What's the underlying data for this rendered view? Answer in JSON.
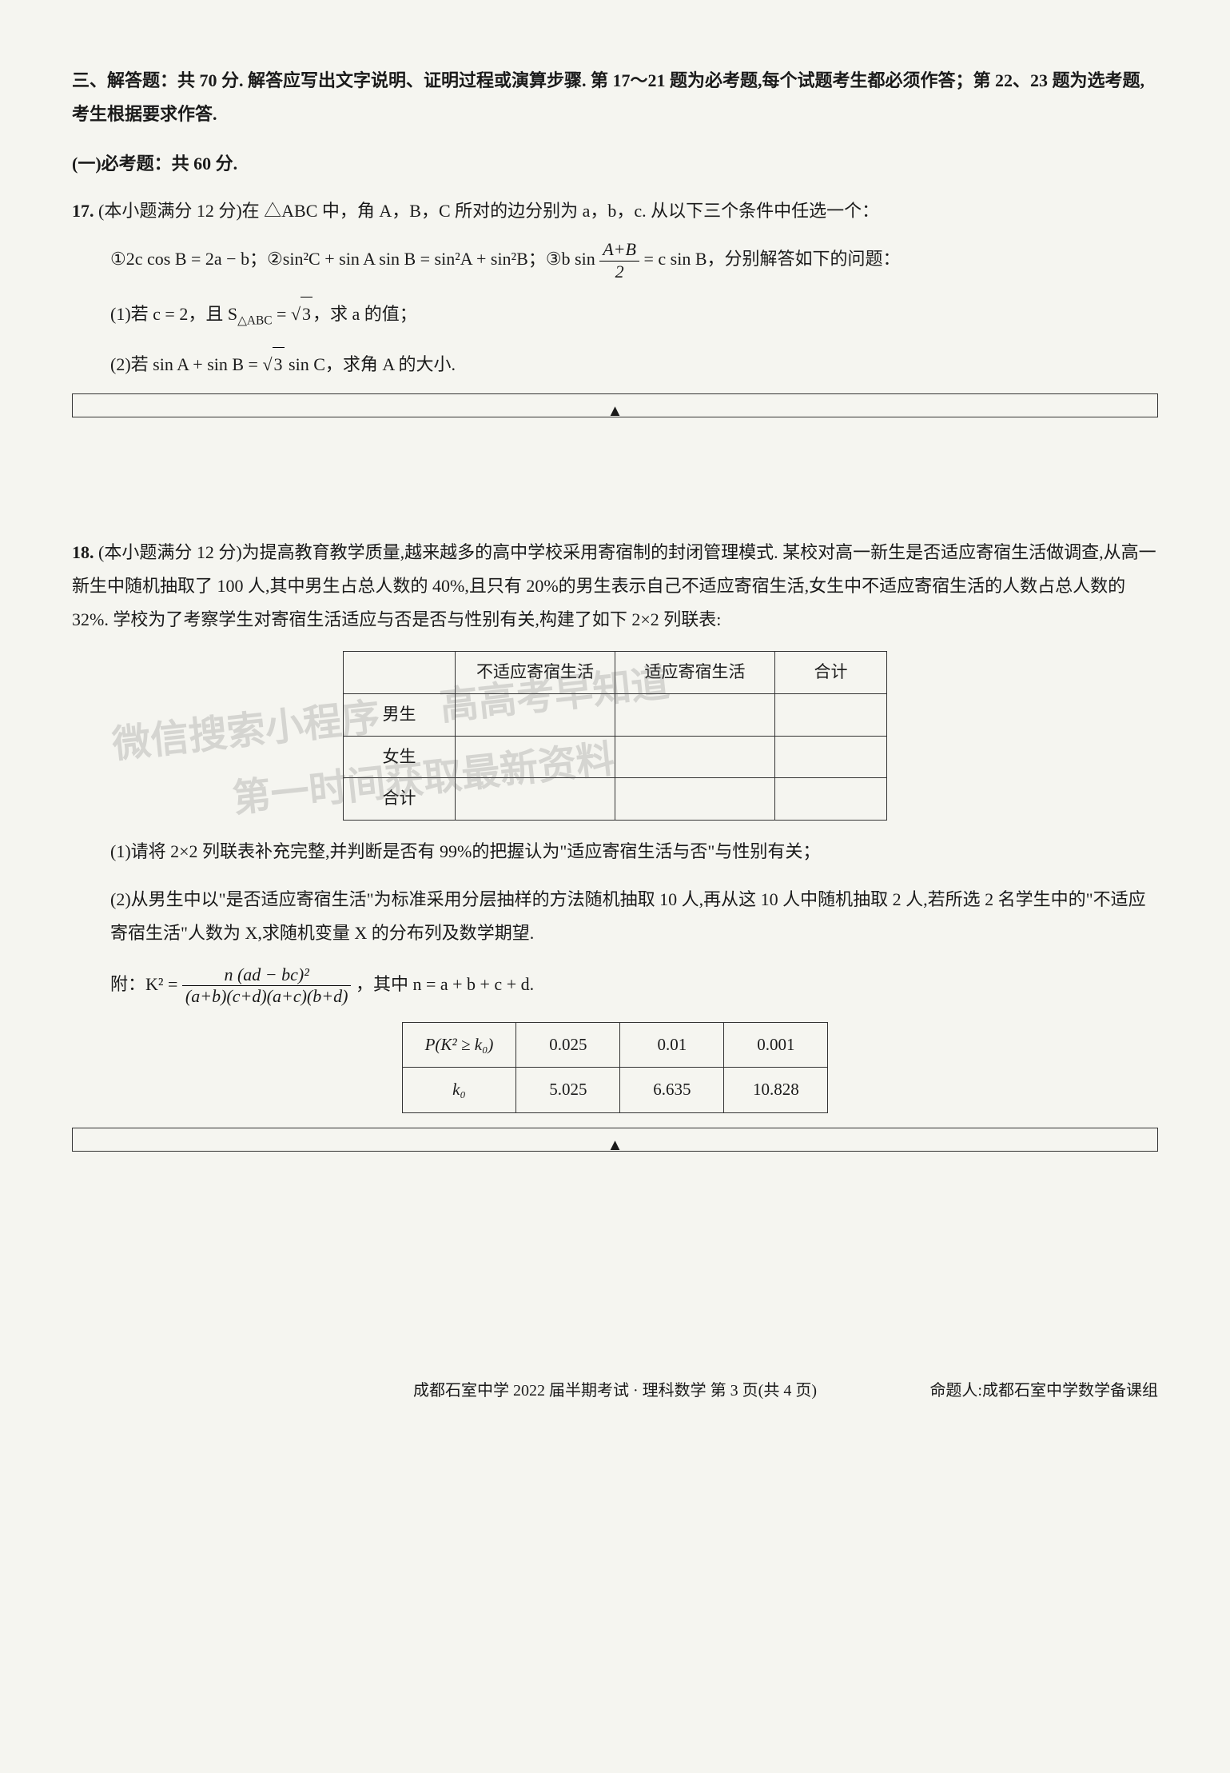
{
  "section3": {
    "header": "三、解答题：共 70 分. 解答应写出文字说明、证明过程或演算步骤. 第 17～21 题为必考题,每个试题考生都必须作答；第 22、23 题为选考题,考生根据要求作答.",
    "subsection": "(一)必考题：共 60 分."
  },
  "q17": {
    "num": "17.",
    "intro": "(本小题满分 12 分)在 △ABC 中，角 A，B，C 所对的边分别为 a，b，c. 从以下三个条件中任选一个：",
    "conditions_prefix": "①2c cos B = 2a − b；②sin²C + sin A sin B = sin²A + sin²B；③b sin",
    "conditions_frac_num": "A+B",
    "conditions_frac_den": "2",
    "conditions_suffix": " = c sin B，分别解答如下的问题：",
    "sub1_prefix": "(1)若 c = 2，且 S",
    "sub1_sub": "△ABC",
    "sub1_mid": " = ",
    "sub1_sqrt": "3",
    "sub1_suffix": "，求 a 的值；",
    "sub2_prefix": "(2)若 sin A + sin B = ",
    "sub2_sqrt": "3",
    "sub2_suffix": " sin C，求角 A 的大小."
  },
  "q18": {
    "num": "18.",
    "intro": "(本小题满分 12 分)为提高教育教学质量,越来越多的高中学校采用寄宿制的封闭管理模式. 某校对高一新生是否适应寄宿生活做调查,从高一新生中随机抽取了 100 人,其中男生占总人数的 40%,且只有 20%的男生表示自己不适应寄宿生活,女生中不适应寄宿生活的人数占总人数的 32%. 学校为了考察学生对寄宿生活适应与否是否与性别有关,构建了如下 2×2 列联表:",
    "table": {
      "headers": [
        "",
        "不适应寄宿生活",
        "适应寄宿生活",
        "合计"
      ],
      "rows": [
        [
          "男生",
          "",
          "",
          ""
        ],
        [
          "女生",
          "",
          "",
          ""
        ],
        [
          "合计",
          "",
          "",
          ""
        ]
      ]
    },
    "sub1": "(1)请将 2×2 列联表补充完整,并判断是否有 99%的把握认为\"适应寄宿生活与否\"与性别有关；",
    "sub2": "(2)从男生中以\"是否适应寄宿生活\"为标准采用分层抽样的方法随机抽取 10 人,再从这 10 人中随机抽取 2 人,若所选 2 名学生中的\"不适应寄宿生活\"人数为 X,求随机变量 X 的分布列及数学期望.",
    "formula_prefix": "附：K² = ",
    "formula_num": "n (ad − bc)²",
    "formula_den": "(a+b)(c+d)(a+c)(b+d)",
    "formula_suffix": "，其中 n = a + b + c + d.",
    "crit_table": {
      "row1": [
        "P(K² ≥ k₀)",
        "0.025",
        "0.01",
        "0.001"
      ],
      "row2": [
        "k₀",
        "5.025",
        "6.635",
        "10.828"
      ]
    }
  },
  "watermarks": {
    "w1": "微信搜索小程序",
    "w2": "第一时间获取最新资料",
    "w3": "高高考早知道"
  },
  "footer": {
    "center": "成都石室中学 2022 届半期考试 · 理科数学  第 3 页(共 4 页)",
    "right": "命题人:成都石室中学数学备课组"
  }
}
